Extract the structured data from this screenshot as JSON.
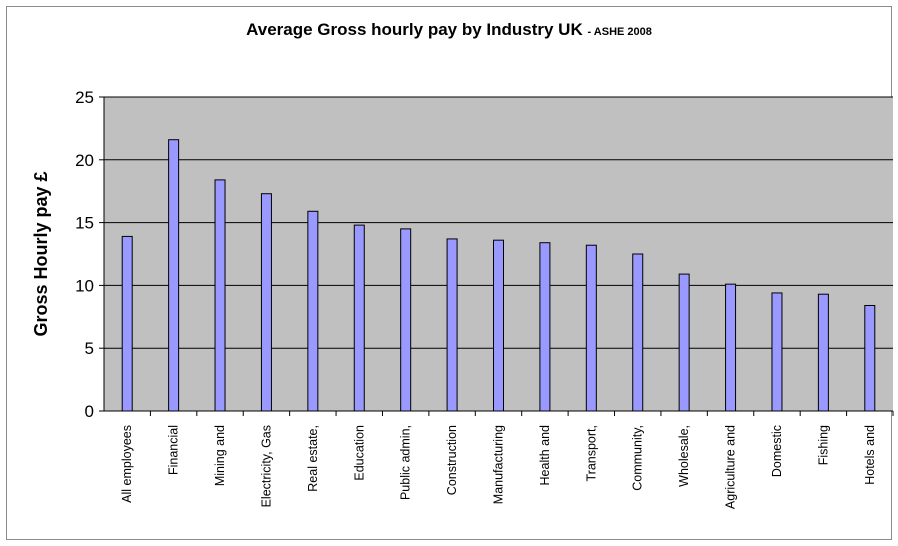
{
  "chart_data": {
    "type": "bar",
    "title": "Average Gross hourly pay by Industry  UK",
    "subtitle": "- ASHE 2008",
    "xlabel": "",
    "ylabel": "Gross Hourly pay £",
    "ylim": [
      0,
      25
    ],
    "yticks": [
      0,
      5,
      10,
      15,
      20,
      25
    ],
    "grid": true,
    "legend": "none",
    "categories": [
      "All employees",
      "Financial",
      "Mining and",
      "Electricity, Gas",
      "Real estate,",
      "Education",
      "Public admin,",
      "Construction",
      "Manufacturing",
      "Health and",
      "Transport,",
      "Community,",
      "Wholesale,",
      "Agriculture and",
      "Domestic",
      "Fishing",
      "Hotels and"
    ],
    "values": [
      13.9,
      21.6,
      18.4,
      17.3,
      15.9,
      14.8,
      14.5,
      13.7,
      13.6,
      13.4,
      13.2,
      12.5,
      10.9,
      10.1,
      9.4,
      9.3,
      8.4
    ],
    "colors": {
      "plot_background": "#c0c0c0",
      "bar_fill": "#9999ff",
      "bar_stroke": "#000000",
      "grid": "#000000"
    }
  }
}
